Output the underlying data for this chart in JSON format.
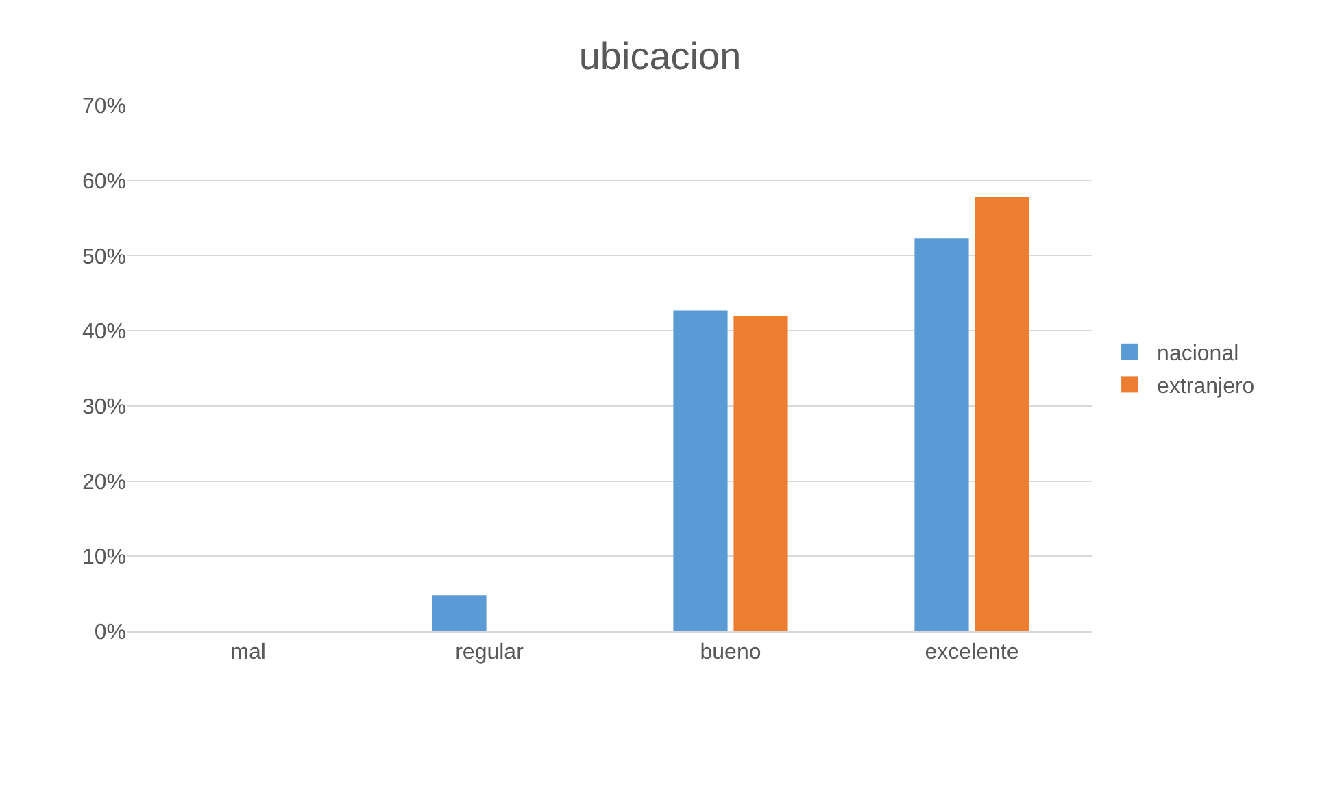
{
  "chart_data": {
    "type": "bar",
    "title": "ubicacion",
    "categories": [
      "mal",
      "regular",
      "bueno",
      "excelente"
    ],
    "series": [
      {
        "name": "nacional",
        "color": "#5b9bd5",
        "values": [
          0,
          4.8,
          42.7,
          52.3
        ]
      },
      {
        "name": "extranjero",
        "color": "#ed7d31",
        "values": [
          0,
          0,
          42.0,
          57.8
        ]
      }
    ],
    "ylim": [
      0,
      70
    ],
    "yticks": [
      {
        "value": 0,
        "label": "0%"
      },
      {
        "value": 10,
        "label": "10%"
      },
      {
        "value": 20,
        "label": "20%"
      },
      {
        "value": 30,
        "label": "30%"
      },
      {
        "value": 40,
        "label": "40%"
      },
      {
        "value": 50,
        "label": "50%"
      },
      {
        "value": 60,
        "label": "60%"
      },
      {
        "value": 70,
        "label": "70%"
      }
    ],
    "grid": "y",
    "legend": "right"
  }
}
